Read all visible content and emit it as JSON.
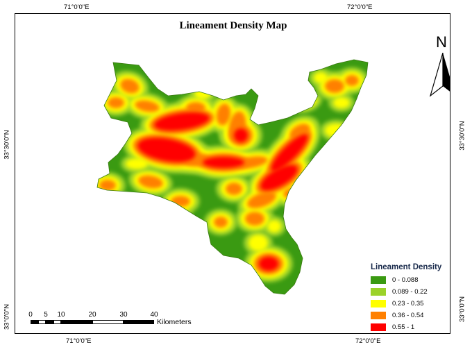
{
  "title": "Lineament Density Map",
  "coordinates": {
    "top_left": "71°0'0\"E",
    "top_right": "72°0'0\"E",
    "bottom_left": "71°0'0\"E",
    "bottom_right": "72°0'0\"E",
    "left_upper": "33°30'0\"N",
    "left_lower": "33°0'0\"N",
    "right_upper": "33°30'0\"N",
    "right_lower": "33°0'0\"N"
  },
  "north_arrow": {
    "label": "N",
    "icon": "north-arrow-icon"
  },
  "scale_bar": {
    "ticks": [
      "0",
      "5",
      "10",
      "20",
      "30",
      "40"
    ],
    "units": "Kilometers"
  },
  "legend": {
    "title": "Lineament Density",
    "classes": [
      {
        "label": "0 - 0.088",
        "color": "#3a9a12"
      },
      {
        "label": "0.089 - 0.22",
        "color": "#9bd22a"
      },
      {
        "label": "0.23 - 0.35",
        "color": "#ffff00"
      },
      {
        "label": "0.36 - 0.54",
        "color": "#ff8000"
      },
      {
        "label": "0.55 - 1",
        "color": "#ff0000"
      }
    ]
  }
}
